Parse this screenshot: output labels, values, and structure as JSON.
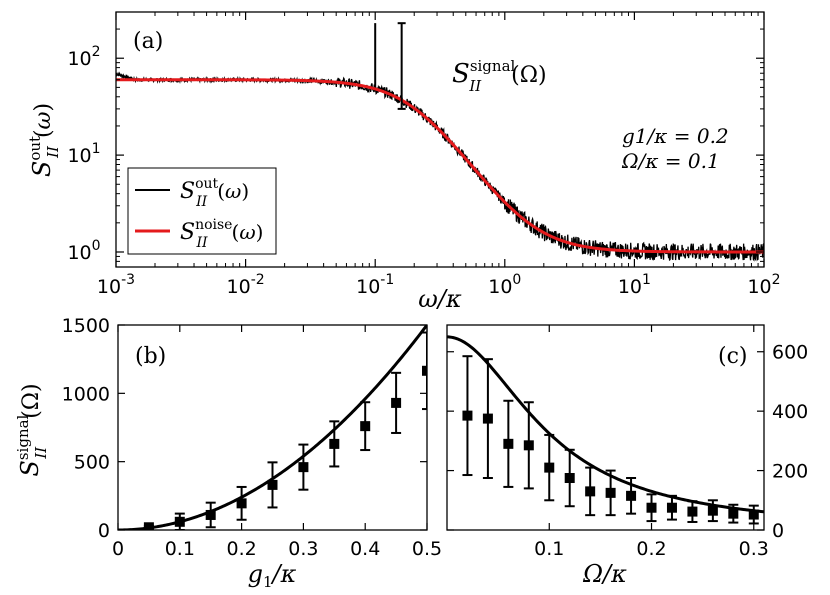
{
  "chart_data": [
    {
      "type": "line",
      "panel_label": "(a)",
      "xscale": "log",
      "yscale": "log",
      "xlim": [
        0.001,
        100
      ],
      "ylim": [
        0.7,
        300
      ],
      "xlabel": "ω/κ",
      "ylabel": "S_II^out(ω)",
      "x_ticks": [
        {
          "base": "10",
          "exp": "-3",
          "v": 0.001
        },
        {
          "base": "10",
          "exp": "-2",
          "v": 0.01
        },
        {
          "base": "10",
          "exp": "-1",
          "v": 0.1
        },
        {
          "base": "10",
          "exp": "0",
          "v": 1
        },
        {
          "base": "10",
          "exp": "1",
          "v": 10
        },
        {
          "base": "10",
          "exp": "2",
          "v": 100
        }
      ],
      "y_ticks": [
        {
          "base": "10",
          "exp": "0",
          "v": 1
        },
        {
          "base": "10",
          "exp": "1",
          "v": 10
        },
        {
          "base": "10",
          "exp": "2",
          "v": 100
        }
      ],
      "annotations": {
        "signal_label": "S_II^signal(Ω)",
        "params": [
          "g1/κ = 0.2",
          "Ω/κ = 0.1"
        ]
      },
      "signal_bar": {
        "x": 0.16,
        "y_low": 30,
        "y_high": 230
      },
      "signal_peak": {
        "x": 0.1,
        "y": 230
      },
      "noise_curve": {
        "low_level": 60,
        "high_level": 1.0,
        "corner": 0.2
      },
      "series": [
        {
          "name": "S_II^out(ω)",
          "label_main": "S",
          "label_sup": "out",
          "label_sub": "II",
          "label_arg": "(ω)",
          "color": "#000000"
        },
        {
          "name": "S_II^noise(ω)",
          "label_main": "S",
          "label_sup": "noise",
          "label_sub": "II",
          "label_arg": "(ω)",
          "color": "#e41a1c"
        }
      ]
    },
    {
      "type": "scatter",
      "panel_label": "(b)",
      "xlim": [
        0,
        0.5
      ],
      "ylim": [
        0,
        1500
      ],
      "xlabel": "g1/κ",
      "ylabel": "S_II^signal(Ω)",
      "x_ticks": [
        "0",
        "0.1",
        "0.2",
        "0.3",
        "0.4",
        "0.5"
      ],
      "y_ticks": [
        "0",
        "500",
        "1000",
        "1500"
      ],
      "theory_curve": {
        "model": "a*x^2",
        "a": 6000
      },
      "series": [
        {
          "name": "data",
          "x": [
            0.05,
            0.1,
            0.15,
            0.2,
            0.25,
            0.3,
            0.35,
            0.4,
            0.45,
            0.5
          ],
          "y": [
            20,
            60,
            110,
            195,
            330,
            460,
            630,
            760,
            930,
            1165
          ],
          "err": [
            10,
            60,
            90,
            120,
            165,
            165,
            165,
            175,
            220,
            280
          ]
        }
      ]
    },
    {
      "type": "scatter",
      "panel_label": "(c)",
      "xlim": [
        0,
        0.31
      ],
      "ylim": [
        0,
        690
      ],
      "xlabel": "Ω/κ",
      "x_ticks": [
        "0.1",
        "0.2",
        "0.3"
      ],
      "y_ticks": [
        "0",
        "200",
        "400",
        "600"
      ],
      "theory_curve": {
        "model": "a/(1+(x/c)^2)",
        "a": 650,
        "c": 0.1
      },
      "series": [
        {
          "name": "data",
          "x": [
            0.02,
            0.04,
            0.06,
            0.08,
            0.1,
            0.12,
            0.14,
            0.16,
            0.18,
            0.2,
            0.22,
            0.24,
            0.26,
            0.28,
            0.3
          ],
          "y": [
            385,
            375,
            290,
            285,
            210,
            175,
            130,
            125,
            115,
            75,
            75,
            62,
            65,
            55,
            52
          ],
          "err": [
            200,
            200,
            145,
            145,
            110,
            95,
            80,
            75,
            60,
            45,
            40,
            35,
            35,
            30,
            30
          ]
        }
      ]
    }
  ]
}
